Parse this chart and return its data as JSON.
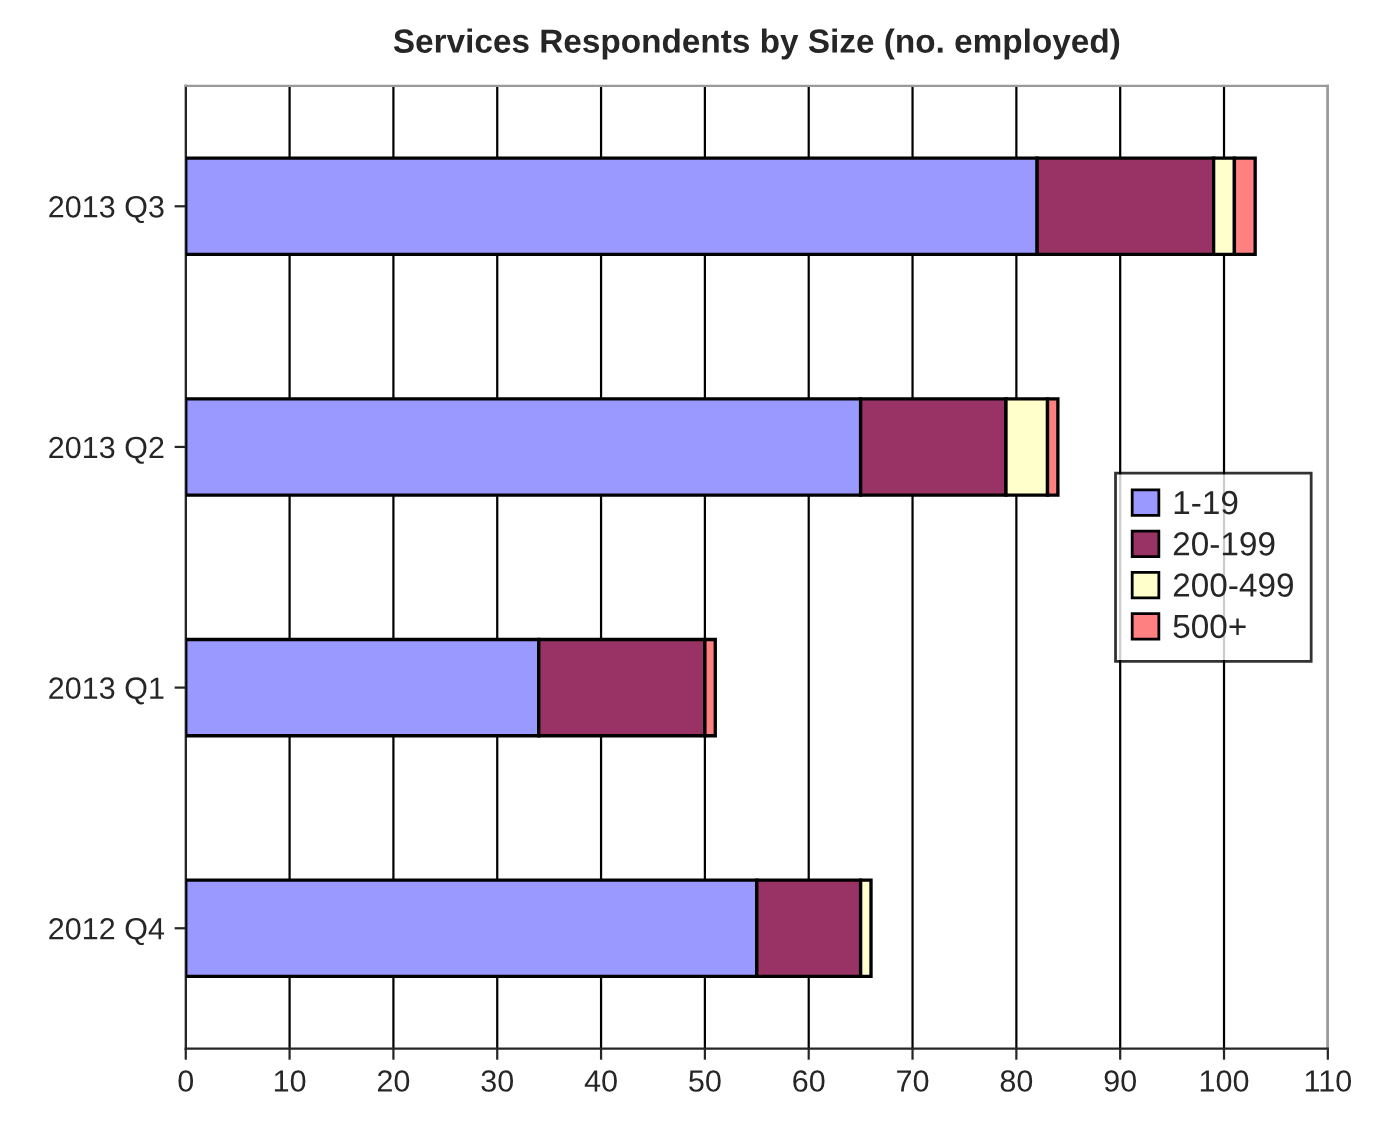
{
  "chart_data": {
    "type": "bar",
    "orientation": "horizontal",
    "stacked": true,
    "title": "Services Respondents by Size (no. employed)",
    "categories": [
      "2013 Q3",
      "2013 Q2",
      "2013 Q1",
      "2012 Q4"
    ],
    "series": [
      {
        "name": "1-19",
        "color": "#9999ff",
        "values": [
          82,
          65,
          34,
          55
        ]
      },
      {
        "name": "20-199",
        "color": "#993366",
        "values": [
          17,
          14,
          16,
          10
        ]
      },
      {
        "name": "200-499",
        "color": "#ffffcc",
        "values": [
          2,
          4,
          null,
          1
        ]
      },
      {
        "name": "500+",
        "color": "#ff8080",
        "values": [
          2,
          1,
          1,
          null
        ]
      }
    ],
    "xlim": [
      0,
      110
    ],
    "xticks": [
      0,
      10,
      20,
      30,
      40,
      50,
      60,
      70,
      80,
      90,
      100,
      110
    ],
    "grid": "x",
    "legend": "right"
  }
}
